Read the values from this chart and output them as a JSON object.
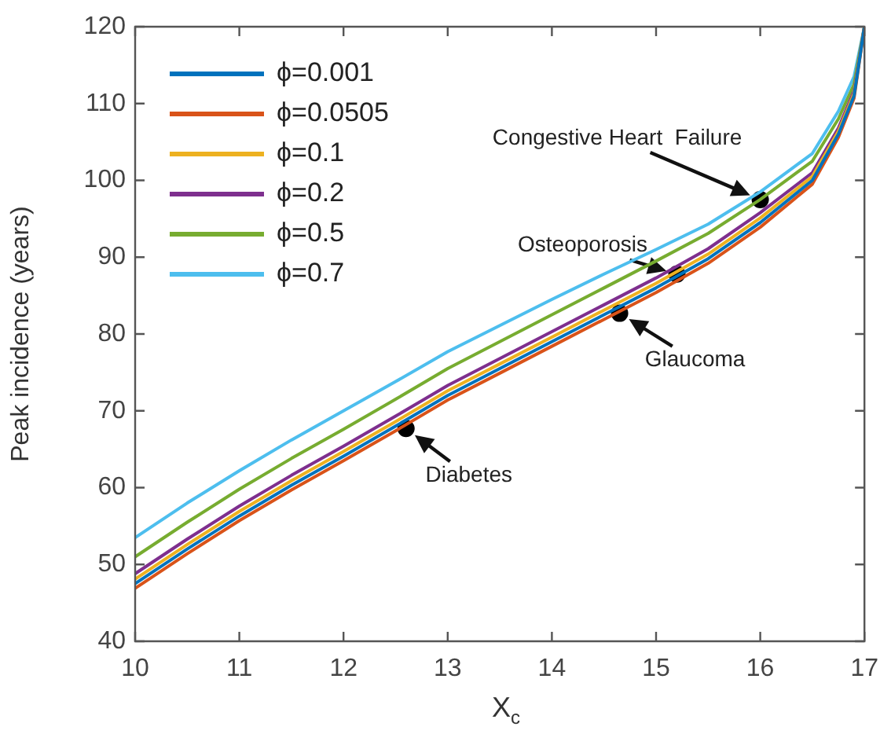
{
  "chart_data": {
    "type": "line",
    "xlabel": "X$_{c}$",
    "ylabel": "Peak incidence (years)",
    "xlim": [
      10,
      17
    ],
    "xticks": [
      10,
      11,
      12,
      13,
      14,
      15,
      16,
      17
    ],
    "ylim": [
      40,
      120
    ],
    "yticks": [
      40,
      50,
      60,
      70,
      80,
      90,
      100,
      110,
      120
    ],
    "legend": "top left",
    "marker": "none",
    "line_style": "solid",
    "series": [
      {
        "name": "ϕ=0.001",
        "color": "#0072bd",
        "x": [
          10,
          10.5,
          11,
          11.5,
          12,
          12.5,
          13,
          13.5,
          14,
          14.5,
          15,
          15.5,
          16,
          16.5,
          16.75,
          16.9,
          17
        ],
        "values": [
          47.5,
          52,
          56.3,
          60.3,
          64.1,
          68,
          72,
          75.5,
          79,
          82.5,
          86,
          89.8,
          94.5,
          100,
          106,
          111,
          120
        ]
      },
      {
        "name": "ϕ=0.0505",
        "color": "#d95319",
        "x": [
          10,
          10.5,
          11,
          11.5,
          12,
          12.5,
          13,
          13.5,
          14,
          14.5,
          15,
          15.5,
          16,
          16.5,
          16.75,
          16.9,
          17
        ],
        "values": [
          46.9,
          51.4,
          55.7,
          59.7,
          63.5,
          67.4,
          71.4,
          74.9,
          78.4,
          81.9,
          85.4,
          89.2,
          93.9,
          99.5,
          105.6,
          110.7,
          120
        ]
      },
      {
        "name": "ϕ=0.1",
        "color": "#edb120",
        "x": [
          10,
          10.5,
          11,
          11.5,
          12,
          12.5,
          13,
          13.5,
          14,
          14.5,
          15,
          15.5,
          16,
          16.5,
          16.75,
          16.9,
          17
        ],
        "values": [
          48.1,
          52.6,
          56.9,
          60.9,
          64.7,
          68.6,
          72.6,
          76.1,
          79.6,
          83.1,
          86.6,
          90.4,
          95.1,
          100.5,
          106.4,
          111.3,
          120
        ]
      },
      {
        "name": "ϕ=0.2",
        "color": "#7e2f8e",
        "x": [
          10,
          10.5,
          11,
          11.5,
          12,
          12.5,
          13,
          13.5,
          14,
          14.5,
          15,
          15.5,
          16,
          16.5,
          16.75,
          16.9,
          17
        ],
        "values": [
          48.8,
          53.3,
          57.6,
          61.6,
          65.4,
          69.3,
          73.3,
          76.8,
          80.3,
          83.8,
          87.3,
          91.1,
          95.8,
          101,
          106.8,
          111.6,
          120
        ]
      },
      {
        "name": "ϕ=0.5",
        "color": "#77ac30",
        "x": [
          10,
          10.5,
          11,
          11.5,
          12,
          12.5,
          13,
          13.5,
          14,
          14.5,
          15,
          15.5,
          16,
          16.5,
          16.75,
          16.9,
          17
        ],
        "values": [
          51,
          55.5,
          59.8,
          63.8,
          67.6,
          71.5,
          75.5,
          79,
          82.5,
          86,
          89.5,
          93.1,
          97.5,
          102.5,
          108,
          112.5,
          120
        ]
      },
      {
        "name": "ϕ=0.7",
        "color": "#4dbeee",
        "x": [
          10,
          10.5,
          11,
          11.5,
          12,
          12.5,
          13,
          13.5,
          14,
          14.5,
          15,
          15.5,
          16,
          16.5,
          16.75,
          16.9,
          17
        ],
        "values": [
          53.5,
          58,
          62.2,
          66.2,
          70,
          73.8,
          77.7,
          81.1,
          84.5,
          87.8,
          91,
          94.3,
          98.5,
          103.5,
          109,
          113.5,
          120
        ]
      },
      {
        "type": "scatter",
        "marker": "circle",
        "color": "#000000",
        "x": [
          12.6,
          14.65,
          15.2,
          16.0
        ],
        "values": [
          67.7,
          82.7,
          87.8,
          97.5
        ]
      }
    ],
    "annotations": [
      {
        "text": "Diabetes",
        "x": 12.6,
        "y": 67.7
      },
      {
        "text": "Glaucoma",
        "x": 14.65,
        "y": 82.7
      },
      {
        "text": "Osteoporosis",
        "x": 15.2,
        "y": 87.8
      },
      {
        "text": "Congestive Heart  Failure",
        "x": 16.0,
        "y": 97.5
      }
    ]
  }
}
